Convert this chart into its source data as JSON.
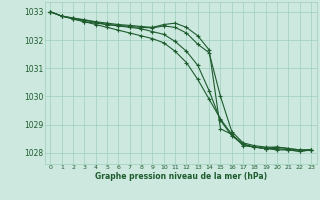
{
  "background_color": "#cce8df",
  "line_color": "#1e5c2e",
  "grid_color": "#9ecfbe",
  "xlabel": "Graphe pression niveau de la mer (hPa)",
  "ylim": [
    1027.6,
    1033.35
  ],
  "xlim": [
    -0.5,
    23.5
  ],
  "yticks": [
    1028,
    1029,
    1030,
    1031,
    1032,
    1033
  ],
  "xticks": [
    0,
    1,
    2,
    3,
    4,
    5,
    6,
    7,
    8,
    9,
    10,
    11,
    12,
    13,
    14,
    15,
    16,
    17,
    18,
    19,
    20,
    21,
    22,
    23
  ],
  "series": [
    [
      1033.0,
      1032.85,
      1032.75,
      1032.65,
      1032.55,
      1032.45,
      1032.35,
      1032.25,
      1032.15,
      1032.05,
      1031.9,
      1031.6,
      1031.2,
      1030.6,
      1029.9,
      1029.2,
      1028.65,
      1028.3,
      1028.2,
      1028.15,
      1028.1,
      1028.1,
      1028.05,
      1028.1
    ],
    [
      1033.0,
      1032.85,
      1032.75,
      1032.65,
      1032.6,
      1032.55,
      1032.5,
      1032.45,
      1032.4,
      1032.3,
      1032.2,
      1031.95,
      1031.6,
      1031.1,
      1030.2,
      1029.15,
      1028.6,
      1028.3,
      1028.2,
      1028.15,
      1028.15,
      1028.1,
      1028.05,
      1028.1
    ],
    [
      1033.0,
      1032.85,
      1032.78,
      1032.7,
      1032.63,
      1032.55,
      1032.52,
      1032.48,
      1032.45,
      1032.43,
      1032.5,
      1032.45,
      1032.25,
      1031.85,
      1031.55,
      1030.0,
      1028.75,
      1028.35,
      1028.25,
      1028.2,
      1028.2,
      1028.15,
      1028.1,
      1028.1
    ],
    [
      1033.0,
      1032.85,
      1032.78,
      1032.72,
      1032.65,
      1032.6,
      1032.55,
      1032.52,
      1032.48,
      1032.45,
      1032.55,
      1032.6,
      1032.45,
      1032.15,
      1031.65,
      1028.85,
      1028.65,
      1028.25,
      1028.2,
      1028.15,
      1028.2,
      1028.15,
      1028.1,
      1028.1
    ]
  ]
}
